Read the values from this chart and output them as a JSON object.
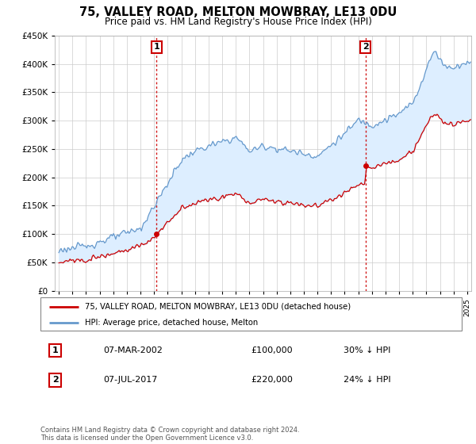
{
  "title": "75, VALLEY ROAD, MELTON MOWBRAY, LE13 0DU",
  "subtitle": "Price paid vs. HM Land Registry's House Price Index (HPI)",
  "ylim": [
    0,
    450000
  ],
  "xlim_start": 1994.7,
  "xlim_end": 2025.3,
  "hpi_color": "#6699cc",
  "hpi_fill_color": "#ddeeff",
  "price_color": "#cc0000",
  "vline_color": "#cc0000",
  "marker1_x": 2002.17,
  "marker1_y": 100000,
  "marker2_x": 2017.52,
  "marker2_y": 220000,
  "legend_line1": "75, VALLEY ROAD, MELTON MOWBRAY, LE13 0DU (detached house)",
  "legend_line2": "HPI: Average price, detached house, Melton",
  "table_row1": [
    "1",
    "07-MAR-2002",
    "£100,000",
    "30% ↓ HPI"
  ],
  "table_row2": [
    "2",
    "07-JUL-2017",
    "£220,000",
    "24% ↓ HPI"
  ],
  "footnote": "Contains HM Land Registry data © Crown copyright and database right 2024.\nThis data is licensed under the Open Government Licence v3.0.",
  "background_color": "#ffffff",
  "grid_color": "#cccccc",
  "title_fontsize": 10.5,
  "subtitle_fontsize": 8.5
}
